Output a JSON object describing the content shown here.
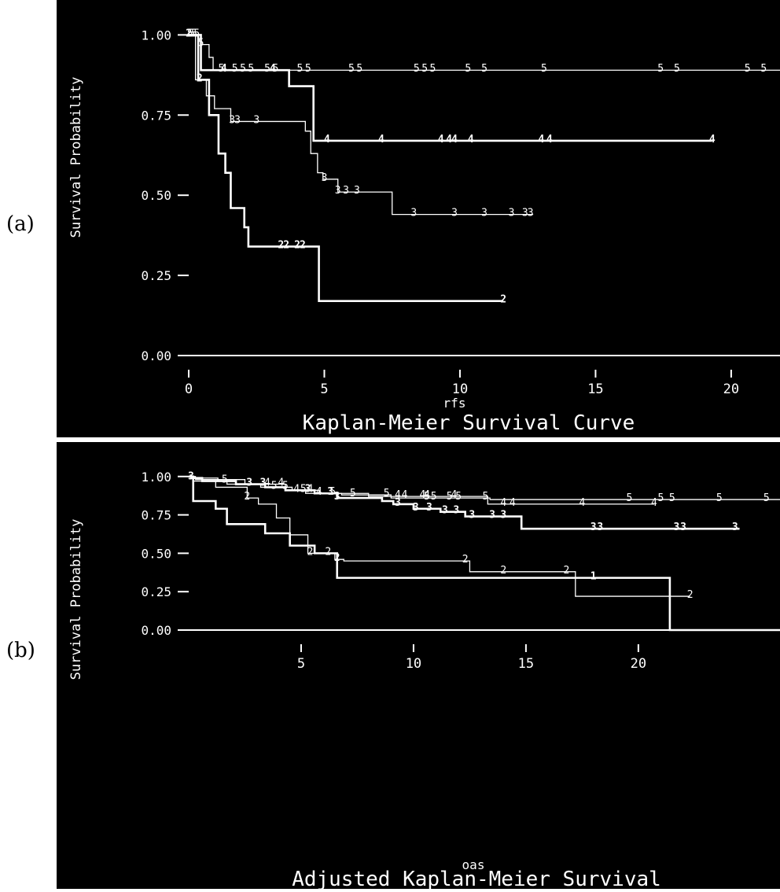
{
  "panels": {
    "a": {
      "label": "(a)"
    },
    "b": {
      "label": "(b)"
    }
  },
  "colors": {
    "background": "#000000",
    "foreground": "#ffffff"
  },
  "chart_data": [
    {
      "type": "line",
      "step": true,
      "title": "Kaplan-Meier Survival Curve",
      "xlabel": "rfs",
      "ylabel": "Survival Probability",
      "xlim": [
        0,
        21.8
      ],
      "ylim": [
        0,
        1.05
      ],
      "xticks": [
        0,
        5,
        10,
        15,
        20
      ],
      "yticks": [
        0.0,
        0.25,
        0.5,
        0.75,
        1.0
      ],
      "ytick_labels": [
        "0.00",
        "0.25",
        "0.50",
        "0.75",
        "1.00"
      ],
      "series": [
        {
          "name": "5",
          "weight": "thin",
          "steps": [
            [
              0.1,
              1.0
            ],
            [
              0.45,
              0.97
            ],
            [
              0.75,
              0.93
            ],
            [
              0.9,
              0.89
            ],
            [
              21.8,
              0.89
            ]
          ],
          "censored": [
            0.05,
            0.12,
            0.2,
            0.3,
            0.45,
            1.2,
            1.7,
            2.0,
            2.3,
            2.9,
            3.2,
            4.1,
            4.4,
            6.0,
            6.3,
            8.4,
            8.7,
            9.0,
            10.3,
            10.9,
            13.1,
            17.4,
            18.0,
            20.6,
            21.2
          ]
        },
        {
          "name": "4",
          "weight": "bold",
          "steps": [
            [
              0.45,
              0.89
            ],
            [
              3.7,
              0.84
            ],
            [
              4.6,
              0.67
            ],
            [
              19.3,
              0.67
            ]
          ],
          "censored": [
            1.3,
            3.1,
            5.1,
            7.1,
            9.3,
            9.6,
            9.8,
            10.4,
            13.0,
            13.3,
            19.3
          ]
        },
        {
          "name": "3",
          "weight": "thin",
          "steps": [
            [
              0.25,
              0.86
            ],
            [
              0.65,
              0.81
            ],
            [
              0.95,
              0.77
            ],
            [
              1.55,
              0.73
            ],
            [
              4.3,
              0.7
            ],
            [
              4.5,
              0.63
            ],
            [
              4.75,
              0.57
            ],
            [
              4.95,
              0.55
            ],
            [
              5.5,
              0.51
            ],
            [
              7.5,
              0.44
            ],
            [
              12.7,
              0.44
            ]
          ],
          "censored": [
            1.6,
            1.8,
            2.5,
            5.0,
            5.5,
            5.8,
            6.2,
            8.3,
            9.8,
            10.9,
            11.9,
            12.4,
            12.6
          ]
        },
        {
          "name": "2",
          "weight": "bold",
          "steps": [
            [
              0.35,
              0.86
            ],
            [
              0.75,
              0.75
            ],
            [
              1.1,
              0.63
            ],
            [
              1.35,
              0.57
            ],
            [
              1.55,
              0.46
            ],
            [
              2.05,
              0.4
            ],
            [
              2.2,
              0.34
            ],
            [
              4.8,
              0.17
            ],
            [
              11.6,
              0.17
            ]
          ],
          "censored": [
            0.0,
            0.4,
            3.4,
            3.6,
            4.0,
            4.2,
            11.6
          ]
        }
      ]
    },
    {
      "type": "line",
      "step": true,
      "title": "Adjusted Kaplan-Meier Survival",
      "xlabel": "oas",
      "ylabel": "Survival Probability",
      "xlim": [
        0,
        26.3
      ],
      "ylim": [
        0,
        1.05
      ],
      "xticks": [
        5,
        10,
        15,
        20
      ],
      "yticks": [
        0.0,
        0.25,
        0.5,
        0.75,
        1.0
      ],
      "ytick_labels": [
        "0.00",
        "0.25",
        "0.50",
        "0.75",
        "1.00"
      ],
      "series": [
        {
          "name": "5",
          "weight": "thin",
          "steps": [
            [
              0.2,
              0.99
            ],
            [
              1.3,
              0.97
            ],
            [
              1.7,
              0.95
            ],
            [
              3.2,
              0.93
            ],
            [
              4.6,
              0.91
            ],
            [
              5.2,
              0.89
            ],
            [
              6.8,
              0.88
            ],
            [
              9.0,
              0.86
            ],
            [
              13.4,
              0.85
            ],
            [
              26.3,
              0.85
            ]
          ],
          "censored": [
            1.6,
            3.8,
            4.3,
            5.1,
            6.4,
            7.3,
            8.8,
            10.6,
            10.9,
            11.6,
            12.0,
            13.2,
            19.6,
            21.0,
            21.5,
            23.6,
            25.7
          ]
        },
        {
          "name": "4",
          "weight": "thin",
          "steps": [
            [
              0.3,
              0.98
            ],
            [
              2.5,
              0.95
            ],
            [
              4.3,
              0.91
            ],
            [
              5.8,
              0.89
            ],
            [
              8.0,
              0.87
            ],
            [
              13.3,
              0.82
            ],
            [
              20.7,
              0.82
            ]
          ],
          "censored": [
            3.5,
            4.1,
            4.8,
            5.4,
            5.8,
            9.3,
            9.6,
            10.4,
            10.6,
            11.8,
            14.0,
            14.4,
            17.5,
            20.7
          ]
        },
        {
          "name": "3",
          "weight": "bold",
          "steps": [
            [
              0.1,
              0.99
            ],
            [
              0.6,
              0.97
            ],
            [
              2.1,
              0.95
            ],
            [
              3.4,
              0.93
            ],
            [
              4.3,
              0.91
            ],
            [
              5.6,
              0.89
            ],
            [
              6.6,
              0.86
            ],
            [
              8.6,
              0.84
            ],
            [
              9.1,
              0.82
            ],
            [
              10.0,
              0.79
            ],
            [
              11.2,
              0.77
            ],
            [
              12.3,
              0.74
            ],
            [
              14.8,
              0.66
            ],
            [
              24.5,
              0.66
            ]
          ],
          "censored": [
            0.1,
            2.7,
            3.3,
            5.3,
            6.3,
            6.6,
            9.3,
            10.1,
            10.7,
            11.4,
            11.9,
            12.6,
            13.5,
            14.0,
            18.0,
            18.3,
            21.7,
            22.0,
            24.3
          ]
        },
        {
          "name": "2",
          "weight": "thin",
          "steps": [
            [
              0.2,
              0.97
            ],
            [
              1.2,
              0.93
            ],
            [
              2.6,
              0.86
            ],
            [
              3.1,
              0.82
            ],
            [
              3.9,
              0.73
            ],
            [
              4.5,
              0.62
            ],
            [
              5.3,
              0.5
            ],
            [
              6.5,
              0.46
            ],
            [
              6.9,
              0.45
            ],
            [
              12.5,
              0.38
            ],
            [
              17.2,
              0.22
            ],
            [
              22.3,
              0.22
            ]
          ],
          "censored": [
            2.6,
            5.4,
            6.2,
            6.6,
            12.3,
            14.0,
            16.8,
            22.3
          ]
        },
        {
          "name": "1",
          "weight": "bold",
          "steps": [
            [
              0.2,
              0.84
            ],
            [
              1.2,
              0.79
            ],
            [
              1.7,
              0.69
            ],
            [
              3.4,
              0.63
            ],
            [
              4.5,
              0.55
            ],
            [
              5.6,
              0.5
            ],
            [
              6.6,
              0.34
            ],
            [
              21.4,
              0.0
            ],
            [
              26.3,
              0.0
            ]
          ],
          "censored": [
            18.0
          ]
        }
      ]
    }
  ]
}
